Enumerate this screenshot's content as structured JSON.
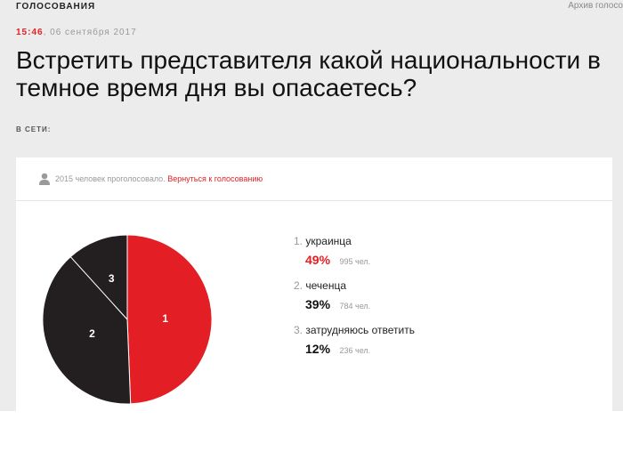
{
  "header": {
    "section": "ГОЛОСОВАНИЯ",
    "archive_link": "Архив голосо"
  },
  "article": {
    "time": "15:46",
    "separator": ",",
    "date": "06 сентября 2017",
    "title": "Встретить представителя какой национальности в темное время дня вы опасаетесь?",
    "online_label": "В СЕТИ:"
  },
  "poll": {
    "votes_text": "2015 человек проголосовало.",
    "back_link": "Вернуться к голосованию",
    "icons": {
      "user": "user-icon"
    },
    "colors": {
      "accent": "#e31e24",
      "dark": "#231f20",
      "slice_border": "#ffffff"
    },
    "results": [
      {
        "num": "1.",
        "label": "украинца",
        "pct": "49%",
        "count": "995 чел."
      },
      {
        "num": "2.",
        "label": "чеченца",
        "pct": "39%",
        "count": "784 чел."
      },
      {
        "num": "3.",
        "label": "затрудняюсь ответить",
        "pct": "12%",
        "count": "236 чел."
      }
    ]
  },
  "chart_data": {
    "type": "pie",
    "categories": [
      "1",
      "2",
      "3"
    ],
    "values": [
      995,
      784,
      236
    ],
    "colors": [
      "#e31e24",
      "#231f20",
      "#231f20"
    ],
    "start": "top, clockwise"
  }
}
